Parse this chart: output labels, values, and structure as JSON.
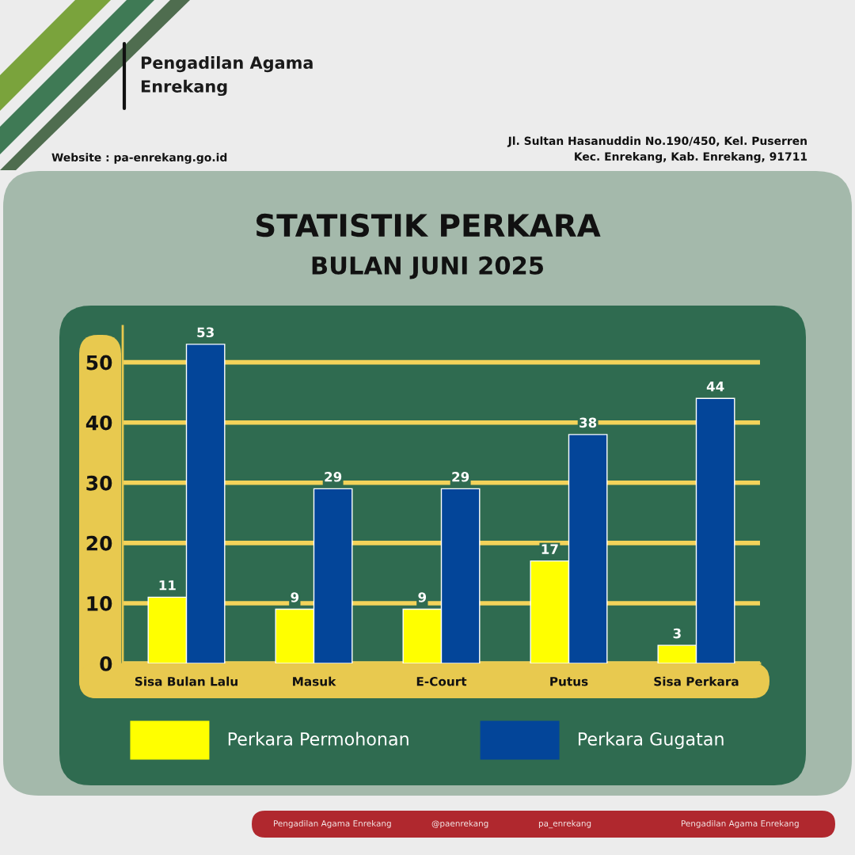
{
  "chart_data": {
    "type": "bar",
    "title": "STATISTIK PERKARA",
    "subtitle": "BULAN JUNI 2025",
    "categories": [
      "Sisa Bulan Lalu",
      "Masuk",
      "E-Court",
      "Putus",
      "Sisa Perkara"
    ],
    "series": [
      {
        "name": "Perkara Permohonan",
        "color": "#ffff00",
        "values": [
          11,
          9,
          9,
          17,
          3
        ]
      },
      {
        "name": "Perkara Gugatan",
        "color": "#034599",
        "values": [
          53,
          29,
          29,
          38,
          44
        ]
      }
    ],
    "ylim": [
      0,
      56
    ],
    "yticks": [
      0,
      10,
      20,
      30,
      40,
      50
    ],
    "grid": "y",
    "legend": "bottom",
    "data_labels": true,
    "annotations": [
      "Pengadilan Agama\nEnrekang",
      "Website : pa-enrekang.go.id",
      "Jl. Sultan Hasanuddin No.190/450, Kel. Puserren\nKec. Enrekang, Kab. Enrekang, 91711",
      "Pengadilan Agama Enrekang",
      "@paenrekang",
      "pa_enrekang",
      "Pengadilan Agama Enrekang"
    ]
  }
}
